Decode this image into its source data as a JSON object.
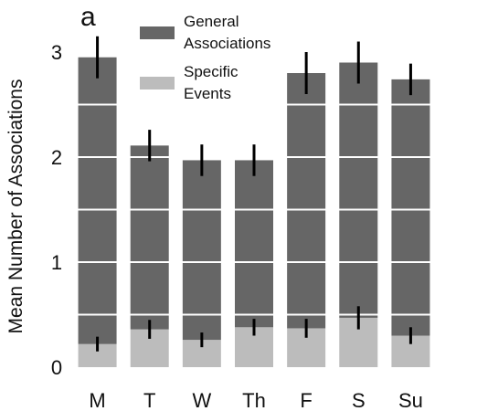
{
  "chart_data": {
    "type": "bar",
    "stacked": true,
    "panel_label": "a",
    "title": "",
    "xlabel": "",
    "ylabel": "Mean Number of Associations",
    "ylim": [
      0,
      3.3
    ],
    "yticks": [
      0,
      1,
      2,
      3
    ],
    "grid": true,
    "legend_position": "top-center",
    "categories": [
      "M",
      "T",
      "W",
      "Th",
      "F",
      "S",
      "Su"
    ],
    "series": [
      {
        "name": "Specific Events",
        "legend_lines": [
          "Specific",
          "Events"
        ],
        "color": "#bcbcbc",
        "values": [
          0.22,
          0.36,
          0.26,
          0.38,
          0.37,
          0.47,
          0.3
        ],
        "error": [
          0.07,
          0.09,
          0.07,
          0.08,
          0.09,
          0.11,
          0.08
        ]
      },
      {
        "name": "General Associations",
        "legend_lines": [
          "General",
          "Associations"
        ],
        "color": "#666666",
        "values": [
          2.73,
          1.75,
          1.71,
          1.59,
          2.43,
          2.43,
          2.44
        ],
        "error": [
          0.2,
          0.15,
          0.15,
          0.15,
          0.2,
          0.2,
          0.15
        ]
      }
    ]
  }
}
